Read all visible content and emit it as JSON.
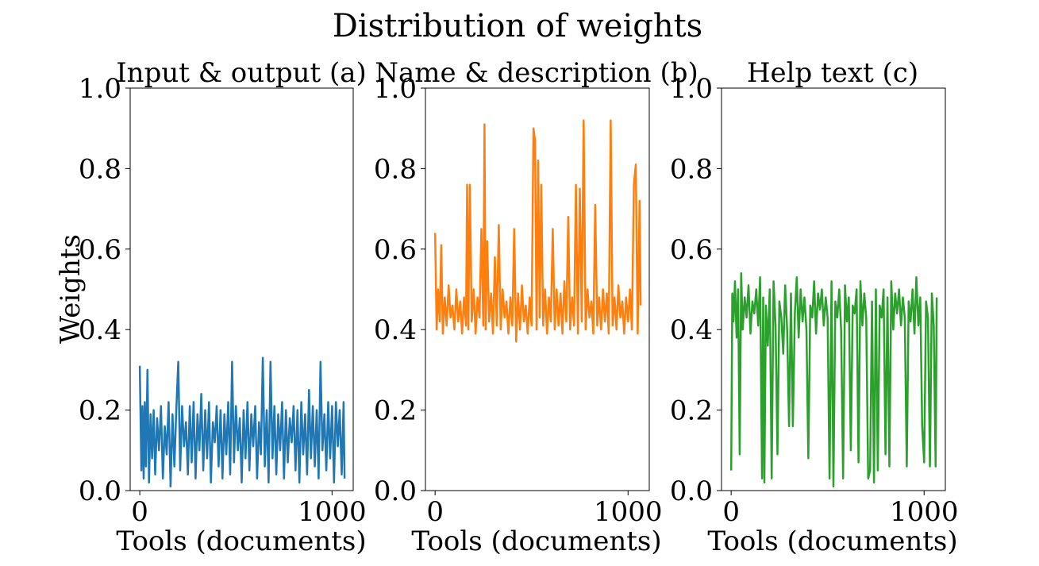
{
  "figure": {
    "title": "Distribution of weights"
  },
  "colors": {
    "a": "#1f77b4",
    "b": "#ff7f0e",
    "c": "#2ca02c"
  },
  "chart_data": [
    {
      "type": "line",
      "title": "Input & output (a)",
      "xlabel": "Tools (documents)",
      "ylabel": "Weights",
      "xlim": [
        -50,
        1110
      ],
      "ylim": [
        0,
        1
      ],
      "x_ticks": [
        "0",
        "1000"
      ],
      "y_ticks": [
        "0.0",
        "0.2",
        "0.4",
        "0.6",
        "0.8",
        "1.0"
      ],
      "series": [
        {
          "color": "#1f77b4",
          "x": [
            0,
            8,
            14,
            20,
            26,
            32,
            40,
            48,
            56,
            64,
            72,
            80,
            90,
            100,
            110,
            120,
            130,
            140,
            150,
            160,
            170,
            180,
            190,
            200,
            210,
            220,
            230,
            240,
            250,
            260,
            270,
            280,
            290,
            300,
            310,
            320,
            330,
            340,
            350,
            360,
            370,
            380,
            390,
            400,
            410,
            420,
            430,
            440,
            450,
            460,
            470,
            480,
            490,
            500,
            510,
            520,
            530,
            540,
            550,
            560,
            570,
            580,
            590,
            600,
            610,
            620,
            630,
            640,
            650,
            660,
            670,
            680,
            690,
            700,
            710,
            720,
            730,
            740,
            750,
            760,
            770,
            780,
            790,
            800,
            810,
            820,
            830,
            840,
            850,
            860,
            870,
            880,
            890,
            900,
            910,
            920,
            930,
            940,
            950,
            960,
            970,
            980,
            990,
            1000,
            1010,
            1020,
            1030,
            1040,
            1050,
            1060,
            1065
          ],
          "y": [
            0.31,
            0.05,
            0.21,
            0.03,
            0.22,
            0.06,
            0.3,
            0.02,
            0.19,
            0.08,
            0.2,
            0.04,
            0.18,
            0.1,
            0.21,
            0.03,
            0.16,
            0.09,
            0.22,
            0.01,
            0.19,
            0.06,
            0.2,
            0.32,
            0.05,
            0.21,
            0.11,
            0.17,
            0.04,
            0.21,
            0.07,
            0.22,
            0.03,
            0.19,
            0.1,
            0.24,
            0.05,
            0.2,
            0.08,
            0.22,
            0.02,
            0.17,
            0.12,
            0.21,
            0.06,
            0.2,
            0.03,
            0.19,
            0.09,
            0.22,
            0.04,
            0.32,
            0.07,
            0.21,
            0.1,
            0.18,
            0.02,
            0.2,
            0.08,
            0.22,
            0.05,
            0.19,
            0.11,
            0.21,
            0.03,
            0.17,
            0.09,
            0.33,
            0.06,
            0.2,
            0.02,
            0.32,
            0.08,
            0.21,
            0.04,
            0.19,
            0.1,
            0.22,
            0.03,
            0.2,
            0.07,
            0.18,
            0.12,
            0.21,
            0.05,
            0.2,
            0.02,
            0.22,
            0.09,
            0.19,
            0.04,
            0.25,
            0.08,
            0.21,
            0.06,
            0.2,
            0.03,
            0.32,
            0.1,
            0.19,
            0.05,
            0.22,
            0.08,
            0.21,
            0.02,
            0.22,
            0.11,
            0.2,
            0.04,
            0.22,
            0.03
          ]
        }
      ]
    },
    {
      "type": "line",
      "title": "Name & description (b)",
      "xlabel": "Tools (documents)",
      "ylabel": "",
      "xlim": [
        -50,
        1110
      ],
      "ylim": [
        0,
        1
      ],
      "x_ticks": [
        "0",
        "1000"
      ],
      "y_ticks": [
        "0.0",
        "0.2",
        "0.4",
        "0.6",
        "0.8",
        "1.0"
      ],
      "series": [
        {
          "color": "#ff7f0e",
          "x": [
            0,
            8,
            16,
            24,
            32,
            40,
            50,
            60,
            70,
            80,
            90,
            100,
            110,
            120,
            130,
            140,
            150,
            160,
            166,
            172,
            180,
            190,
            200,
            210,
            220,
            230,
            240,
            250,
            256,
            262,
            270,
            280,
            290,
            300,
            310,
            320,
            330,
            340,
            350,
            360,
            370,
            380,
            390,
            400,
            410,
            420,
            430,
            440,
            450,
            460,
            470,
            480,
            490,
            500,
            510,
            518,
            526,
            534,
            542,
            550,
            560,
            570,
            580,
            590,
            600,
            610,
            620,
            630,
            640,
            650,
            660,
            670,
            680,
            690,
            700,
            710,
            720,
            730,
            740,
            750,
            760,
            770,
            780,
            790,
            800,
            810,
            820,
            830,
            840,
            850,
            860,
            870,
            880,
            890,
            900,
            910,
            920,
            930,
            940,
            950,
            960,
            970,
            980,
            990,
            1000,
            1010,
            1020,
            1030,
            1040,
            1050,
            1060,
            1065
          ],
          "y": [
            0.64,
            0.4,
            0.5,
            0.42,
            0.61,
            0.39,
            0.48,
            0.41,
            0.51,
            0.43,
            0.46,
            0.4,
            0.5,
            0.42,
            0.47,
            0.39,
            0.48,
            0.41,
            0.76,
            0.4,
            0.76,
            0.42,
            0.5,
            0.39,
            0.48,
            0.43,
            0.65,
            0.41,
            0.91,
            0.4,
            0.62,
            0.42,
            0.49,
            0.39,
            0.58,
            0.41,
            0.66,
            0.4,
            0.5,
            0.43,
            0.47,
            0.39,
            0.48,
            0.41,
            0.65,
            0.37,
            0.49,
            0.4,
            0.51,
            0.42,
            0.46,
            0.39,
            0.48,
            0.41,
            0.9,
            0.87,
            0.4,
            0.82,
            0.43,
            0.76,
            0.41,
            0.5,
            0.39,
            0.48,
            0.42,
            0.65,
            0.4,
            0.5,
            0.41,
            0.49,
            0.39,
            0.52,
            0.42,
            0.68,
            0.4,
            0.48,
            0.41,
            0.76,
            0.39,
            0.75,
            0.42,
            0.92,
            0.4,
            0.5,
            0.43,
            0.47,
            0.39,
            0.71,
            0.41,
            0.48,
            0.4,
            0.5,
            0.42,
            0.49,
            0.39,
            0.92,
            0.41,
            0.48,
            0.4,
            0.51,
            0.43,
            0.47,
            0.39,
            0.48,
            0.42,
            0.5,
            0.4,
            0.76,
            0.81,
            0.39,
            0.72,
            0.46
          ]
        }
      ]
    },
    {
      "type": "line",
      "title": "Help text (c)",
      "xlabel": "Tools (documents)",
      "ylabel": "",
      "xlim": [
        -50,
        1110
      ],
      "ylim": [
        0,
        1
      ],
      "x_ticks": [
        "0",
        "1000"
      ],
      "y_ticks": [
        "0.0",
        "0.2",
        "0.4",
        "0.6",
        "0.8",
        "1.0"
      ],
      "series": [
        {
          "color": "#2ca02c",
          "x": [
            0,
            6,
            12,
            20,
            28,
            36,
            44,
            52,
            60,
            70,
            80,
            90,
            100,
            110,
            120,
            130,
            140,
            150,
            160,
            166,
            172,
            180,
            190,
            200,
            210,
            220,
            230,
            240,
            250,
            260,
            270,
            280,
            290,
            300,
            310,
            320,
            330,
            340,
            350,
            360,
            370,
            380,
            390,
            400,
            410,
            420,
            430,
            440,
            450,
            460,
            470,
            480,
            490,
            500,
            510,
            520,
            530,
            540,
            550,
            560,
            570,
            580,
            590,
            600,
            610,
            620,
            630,
            640,
            650,
            660,
            670,
            680,
            690,
            700,
            710,
            720,
            730,
            740,
            750,
            760,
            770,
            780,
            790,
            800,
            810,
            820,
            830,
            840,
            850,
            860,
            870,
            880,
            890,
            900,
            910,
            920,
            930,
            940,
            950,
            960,
            970,
            980,
            990,
            1000,
            1010,
            1020,
            1030,
            1040,
            1050,
            1060,
            1065
          ],
          "y": [
            0.05,
            0.49,
            0.42,
            0.52,
            0.38,
            0.5,
            0.09,
            0.54,
            0.4,
            0.48,
            0.43,
            0.51,
            0.39,
            0.47,
            0.44,
            0.5,
            0.41,
            0.53,
            0.03,
            0.48,
            0.02,
            0.46,
            0.36,
            0.5,
            0.03,
            0.52,
            0.41,
            0.09,
            0.47,
            0.43,
            0.34,
            0.51,
            0.4,
            0.16,
            0.49,
            0.16,
            0.44,
            0.53,
            0.38,
            0.5,
            0.42,
            0.48,
            0.4,
            0.08,
            0.46,
            0.43,
            0.52,
            0.39,
            0.49,
            0.45,
            0.5,
            0.41,
            0.48,
            0.43,
            0.03,
            0.52,
            0.01,
            0.47,
            0.43,
            0.5,
            0.4,
            0.03,
            0.51,
            0.42,
            0.48,
            0.1,
            0.46,
            0.44,
            0.5,
            0.07,
            0.52,
            0.41,
            0.49,
            0.43,
            0.03,
            0.05,
            0.47,
            0.02,
            0.5,
            0.05,
            0.46,
            0.43,
            0.5,
            0.09,
            0.48,
            0.06,
            0.52,
            0.4,
            0.49,
            0.44,
            0.5,
            0.41,
            0.48,
            0.43,
            0.06,
            0.47,
            0.42,
            0.5,
            0.39,
            0.53,
            0.41,
            0.48,
            0.16,
            0.07,
            0.47,
            0.43,
            0.06,
            0.49,
            0.41,
            0.06,
            0.48
          ]
        }
      ]
    }
  ]
}
